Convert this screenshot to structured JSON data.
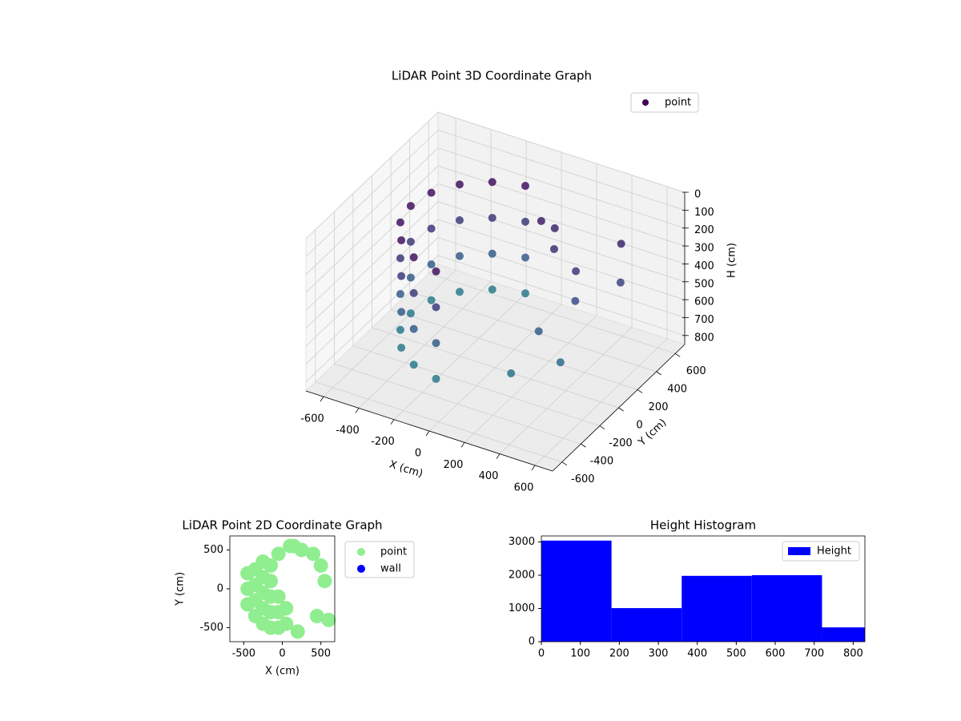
{
  "chart_data": [
    {
      "type": "scatter3d",
      "title": "LiDAR Point 3D Coordinate Graph",
      "x_label": "X (cm)",
      "y_label": "Y (cm)",
      "z_label": "H (cm)",
      "xlim": [
        -700,
        700
      ],
      "ylim": [
        -700,
        700
      ],
      "zlim": [
        0,
        850
      ],
      "z_inverted": true,
      "xticks": [
        -600,
        -400,
        -200,
        0,
        200,
        400,
        600
      ],
      "yticks": [
        -600,
        -400,
        -200,
        0,
        200,
        400,
        600
      ],
      "zticks": [
        0,
        100,
        200,
        300,
        400,
        500,
        600,
        700,
        800
      ],
      "grid": true,
      "cmap": "viridis",
      "legend": "upper right",
      "series": [
        {
          "name": "point",
          "x": [
            -83,
            -240,
            -368,
            -451,
            -480,
            -451,
            -368,
            -240,
            -83,
            -83,
            -240,
            -368,
            -451,
            -480,
            -451,
            -368,
            -240,
            -83,
            -83,
            -240,
            -368,
            -451,
            -480,
            -451,
            -368,
            -240,
            -83,
            -83,
            -240,
            -368,
            -451,
            -480,
            -451,
            -368,
            -240,
            -83,
            100,
            150,
            200,
            350,
            400,
            300,
            450,
            250,
            500,
            550
          ],
          "y": [
            473,
            416,
            309,
            164,
            0,
            -164,
            -309,
            -416,
            -473,
            473,
            416,
            309,
            164,
            0,
            -164,
            -309,
            -416,
            -473,
            473,
            416,
            309,
            164,
            0,
            -164,
            -309,
            -416,
            -473,
            473,
            416,
            309,
            164,
            0,
            -164,
            -309,
            -416,
            -473,
            300,
            350,
            250,
            200,
            100,
            -100,
            -150,
            -300,
            400,
            300
          ],
          "z": [
            100,
            100,
            100,
            100,
            100,
            100,
            100,
            100,
            100,
            300,
            300,
            300,
            300,
            300,
            300,
            300,
            300,
            300,
            500,
            500,
            500,
            500,
            500,
            500,
            500,
            500,
            500,
            700,
            700,
            700,
            700,
            700,
            700,
            700,
            700,
            700,
            150,
            200,
            250,
            300,
            400,
            500,
            600,
            650,
            200,
            350
          ]
        }
      ]
    },
    {
      "type": "scatter",
      "title": "LiDAR Point 2D Coordinate Graph",
      "x_label": "X (cm)",
      "y_label": "Y (cm)",
      "xlim": [
        -680,
        680
      ],
      "ylim": [
        -680,
        680
      ],
      "xticks": [
        -500,
        0,
        500
      ],
      "yticks": [
        -500,
        0,
        500
      ],
      "legend": "outside upper right",
      "series": [
        {
          "name": "point",
          "color": "#90ee90",
          "x": [
            -450,
            -450,
            -450,
            -350,
            -350,
            -350,
            -350,
            -250,
            -250,
            -250,
            -250,
            -250,
            -150,
            -150,
            -150,
            -150,
            -150,
            -50,
            -50,
            -50,
            -50,
            50,
            50,
            150,
            250,
            400,
            500,
            550,
            450,
            600,
            200,
            100
          ],
          "y": [
            0,
            -200,
            200,
            -350,
            -150,
            50,
            250,
            -450,
            -250,
            -50,
            150,
            350,
            -500,
            -300,
            -100,
            100,
            300,
            -500,
            -300,
            -100,
            450,
            -450,
            -250,
            550,
            500,
            450,
            300,
            100,
            -350,
            -400,
            -550,
            550
          ]
        },
        {
          "name": "wall",
          "color": "#0000ff",
          "x": [],
          "y": []
        }
      ]
    },
    {
      "type": "histogram",
      "title": "Height Histogram",
      "bins": [
        0,
        180,
        360,
        540,
        720,
        830
      ],
      "values": [
        3040,
        1010,
        1980,
        2000,
        430
      ],
      "xlim": [
        0,
        830
      ],
      "ylim": [
        0,
        3180
      ],
      "xticks": [
        0,
        100,
        200,
        300,
        400,
        500,
        600,
        700,
        800
      ],
      "yticks": [
        0,
        1000,
        2000,
        3000
      ],
      "legend": "upper right",
      "series_name": "Height",
      "color": "#0000ff"
    }
  ]
}
